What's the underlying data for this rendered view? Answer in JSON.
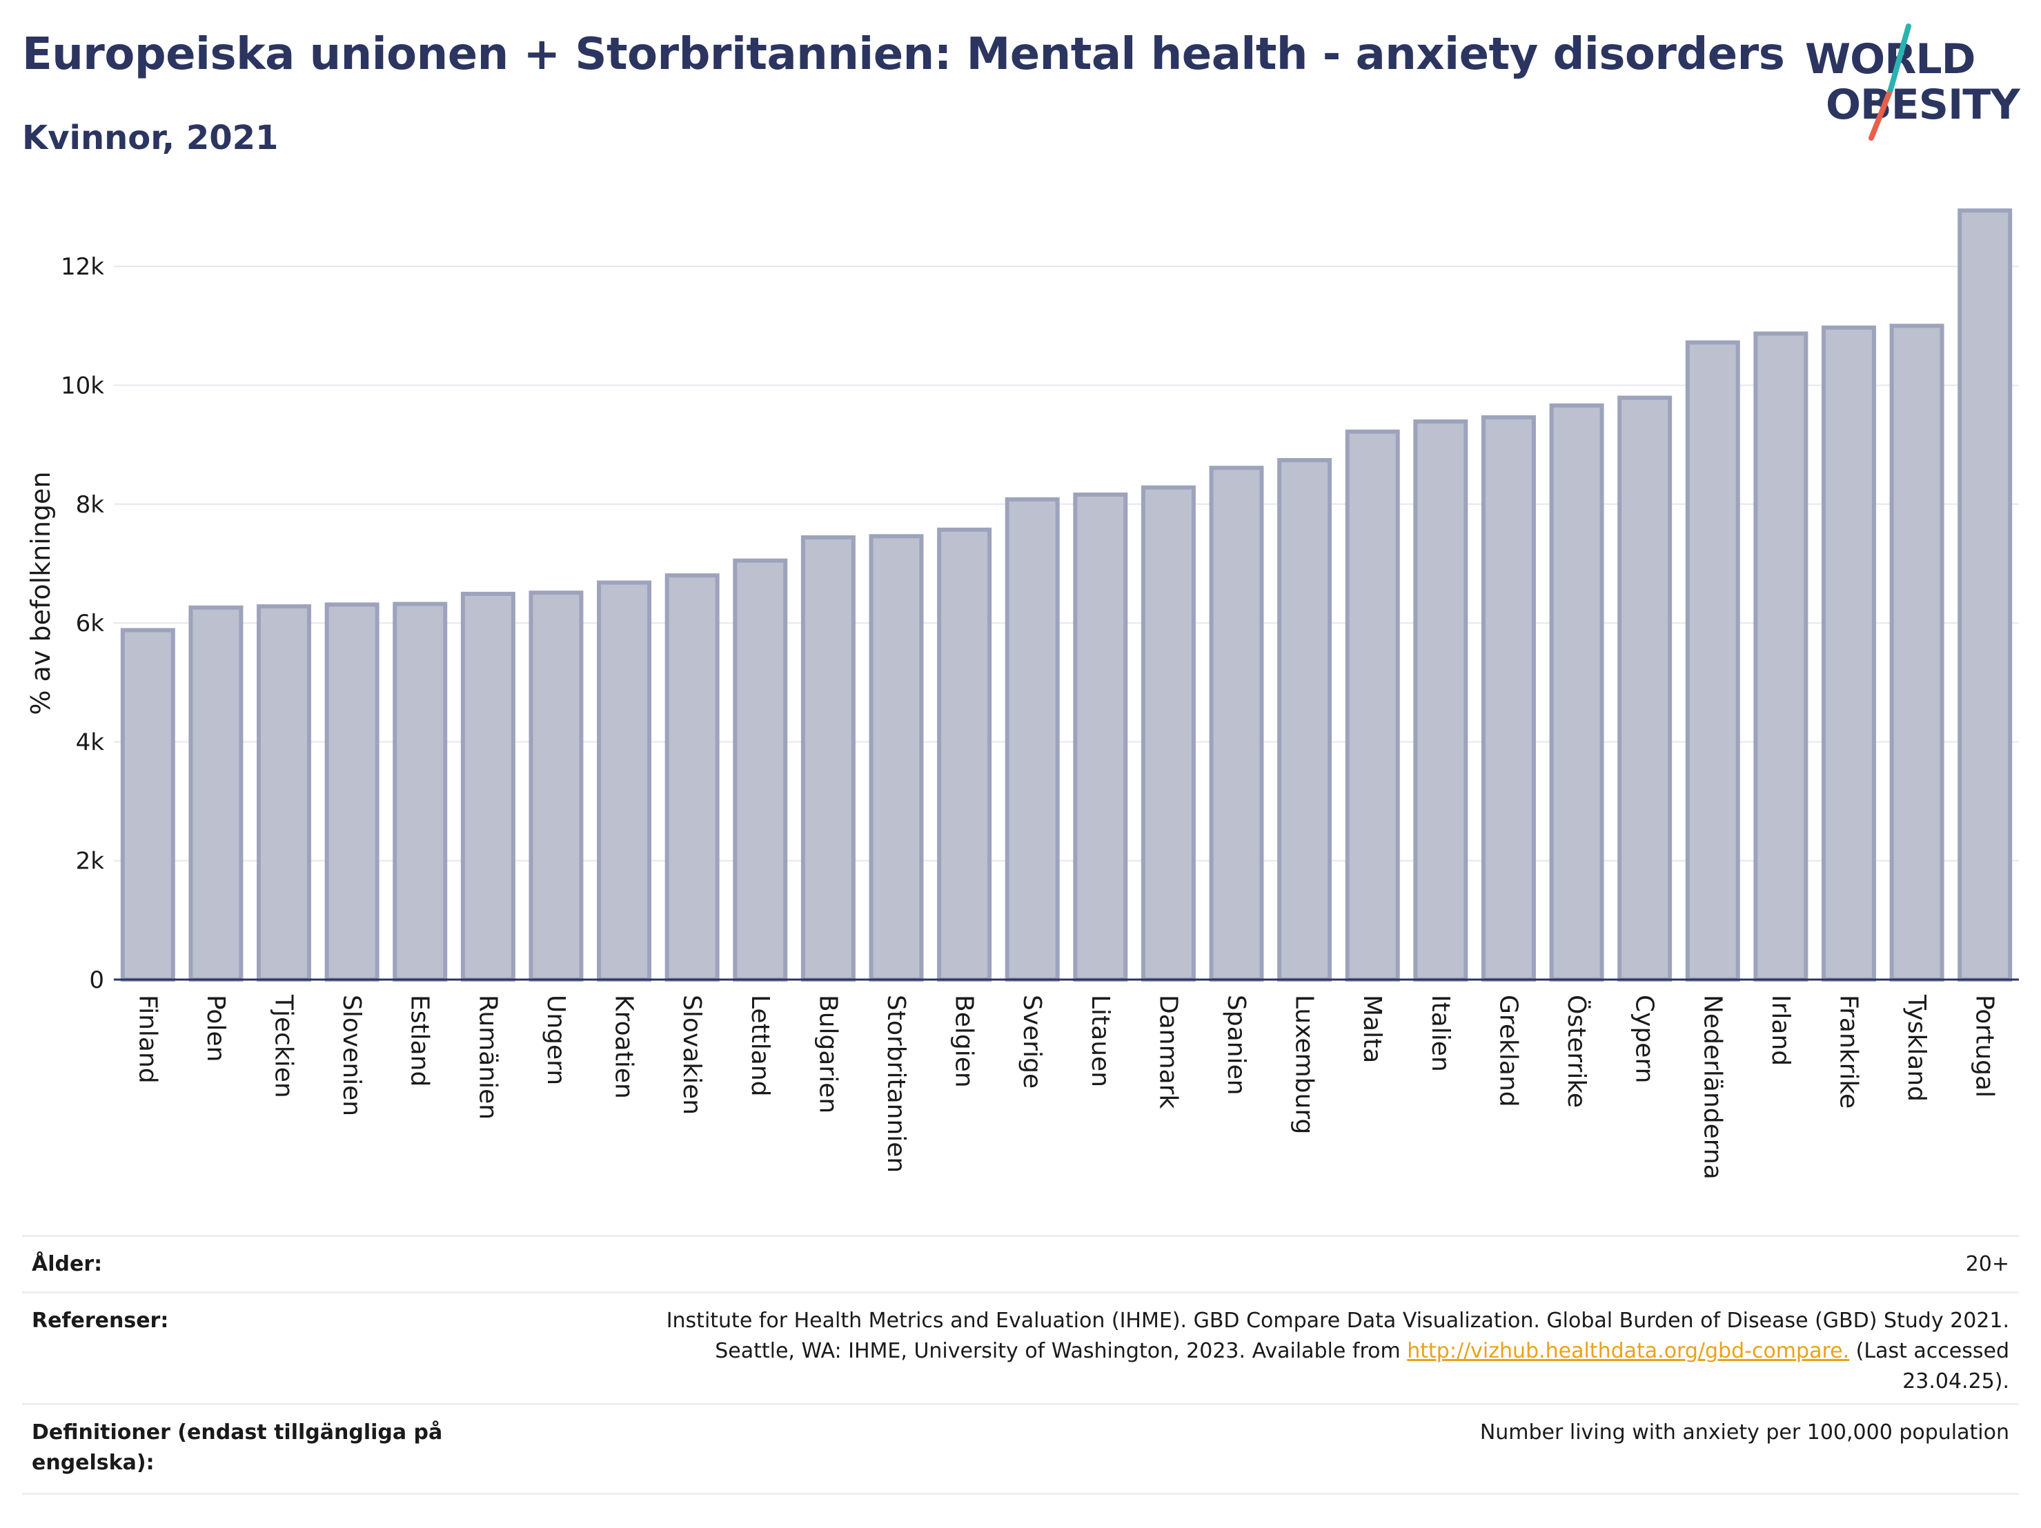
{
  "header": {
    "title": "Europeiska unionen + Storbritannien: Mental health - anxiety disorders",
    "subtitle": "Kvinnor, 2021"
  },
  "logo": {
    "line1": "WORLD",
    "line2": "OBESITY",
    "colors": {
      "text": "#2b3560",
      "slash_top": "#2ab3b0",
      "slash_bottom": "#e8604c"
    }
  },
  "chart_data": {
    "type": "bar",
    "title": "",
    "xlabel": "",
    "ylabel": "% av befolkningen",
    "ylim": [
      0,
      13000
    ],
    "yticks": [
      0,
      2000,
      4000,
      6000,
      8000,
      10000,
      12000
    ],
    "ytick_labels": [
      "0",
      "2k",
      "4k",
      "6k",
      "8k",
      "10k",
      "12k"
    ],
    "grid": true,
    "bar_fill": "#bcc0cf",
    "bar_stroke": "#9da3bc",
    "categories": [
      "Finland",
      "Polen",
      "Tjeckien",
      "Slovenien",
      "Estland",
      "Rumänien",
      "Ungern",
      "Kroatien",
      "Slovakien",
      "Lettland",
      "Bulgarien",
      "Storbritannien",
      "Belgien",
      "Sverige",
      "Litauen",
      "Danmark",
      "Spanien",
      "Luxemburg",
      "Malta",
      "Italien",
      "Grekland",
      "Österrike",
      "Cypern",
      "Nederländerna",
      "Irland",
      "Frankrike",
      "Tyskland",
      "Portugal"
    ],
    "values": [
      5880,
      6260,
      6280,
      6310,
      6320,
      6490,
      6510,
      6680,
      6800,
      7050,
      7440,
      7460,
      7570,
      8080,
      8160,
      8280,
      8610,
      8740,
      9220,
      9390,
      9460,
      9660,
      9790,
      10720,
      10870,
      10970,
      11000,
      12940
    ]
  },
  "info": {
    "age_label": "Ålder:",
    "age_value": "20+",
    "ref_label": "Referenser:",
    "ref_line1": "Institute for Health Metrics and Evaluation (IHME). GBD Compare Data Visualization. Global Burden of Disease (GBD) Study 2021.",
    "ref_line2_pre": "Seattle, WA: IHME, University of Washington, 2023. Available from",
    "ref_link": "http://vizhub.healthdata.org/gbd-compare.",
    "ref_line2_post": "(Last accessed",
    "ref_line3": "23.04.25).",
    "def_label": "Definitioner (endast tillgängliga på engelska):",
    "def_value": "Number living with anxiety per 100,000 population"
  }
}
